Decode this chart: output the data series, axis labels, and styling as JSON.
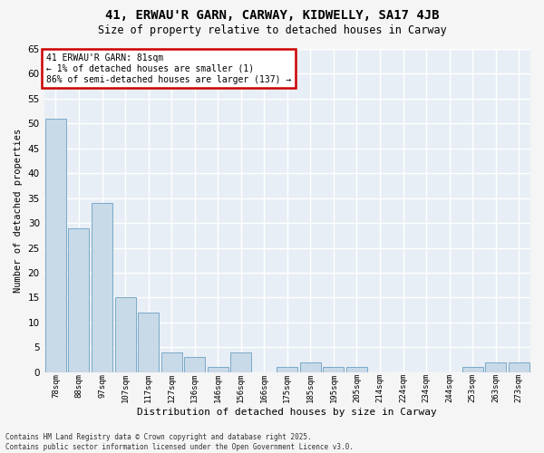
{
  "title": "41, ERWAU'R GARN, CARWAY, KIDWELLY, SA17 4JB",
  "subtitle": "Size of property relative to detached houses in Carway",
  "xlabel": "Distribution of detached houses by size in Carway",
  "ylabel": "Number of detached properties",
  "categories": [
    "78sqm",
    "88sqm",
    "97sqm",
    "107sqm",
    "117sqm",
    "127sqm",
    "136sqm",
    "146sqm",
    "156sqm",
    "166sqm",
    "175sqm",
    "185sqm",
    "195sqm",
    "205sqm",
    "214sqm",
    "224sqm",
    "234sqm",
    "244sqm",
    "253sqm",
    "263sqm",
    "273sqm"
  ],
  "values": [
    51,
    29,
    34,
    15,
    12,
    4,
    3,
    1,
    4,
    0,
    1,
    2,
    1,
    1,
    0,
    0,
    0,
    0,
    1,
    2,
    2
  ],
  "bar_color": "#c8d9e8",
  "bar_edge_color": "#7aaac8",
  "background_color": "#e8eef5",
  "grid_color": "#ffffff",
  "fig_bg_color": "#f5f5f5",
  "ylim": [
    0,
    65
  ],
  "yticks": [
    0,
    5,
    10,
    15,
    20,
    25,
    30,
    35,
    40,
    45,
    50,
    55,
    60,
    65
  ],
  "annotation_title": "41 ERWAU'R GARN: 81sqm",
  "annotation_line1": "← 1% of detached houses are smaller (1)",
  "annotation_line2": "86% of semi-detached houses are larger (137) →",
  "annotation_box_color": "#ffffff",
  "annotation_edge_color": "#cc0000",
  "footer_line1": "Contains HM Land Registry data © Crown copyright and database right 2025.",
  "footer_line2": "Contains public sector information licensed under the Open Government Licence v3.0."
}
